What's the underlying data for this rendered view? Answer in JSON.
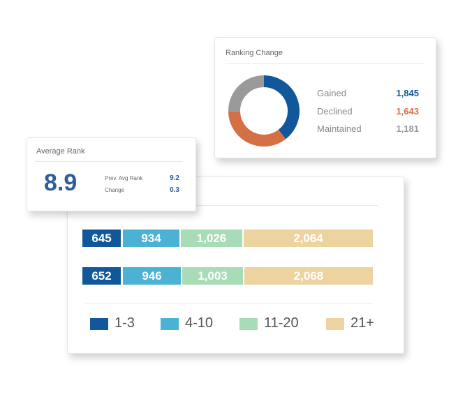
{
  "colors": {
    "dark_blue": "#11589b",
    "light_blue": "#4cb2d3",
    "light_green": "#a7dcb7",
    "tan": "#ecd3a0",
    "orange": "#d56f44",
    "gray": "#9a9a9a"
  },
  "ranking_change": {
    "title": "Ranking Change",
    "items": [
      {
        "label": "Gained",
        "value": "1,845",
        "amount": 1845,
        "color": "#11589b"
      },
      {
        "label": "Declined",
        "value": "1,643",
        "amount": 1643,
        "color": "#d56f44"
      },
      {
        "label": "Maintained",
        "value": "1,181",
        "amount": 1181,
        "color": "#9a9a9a"
      }
    ]
  },
  "average_rank": {
    "title": "Average Rank",
    "value": "8.9",
    "prev_label": "Prev. Avg Rank",
    "prev_value": "9.2",
    "change_label": "Change",
    "change_value": "0.3"
  },
  "distribution": {
    "rows": [
      {
        "segments": [
          {
            "label": "645",
            "value": 645
          },
          {
            "label": "934",
            "value": 934
          },
          {
            "label": "1,026",
            "value": 1026
          },
          {
            "label": "2,064",
            "value": 2064
          }
        ]
      },
      {
        "segments": [
          {
            "label": "652",
            "value": 652
          },
          {
            "label": "946",
            "value": 946
          },
          {
            "label": "1,003",
            "value": 1003
          },
          {
            "label": "2,068",
            "value": 2068
          }
        ]
      }
    ],
    "legend": [
      {
        "label": "1-3",
        "color": "#11589b"
      },
      {
        "label": "4-10",
        "color": "#4cb2d3"
      },
      {
        "label": "11-20",
        "color": "#a7dcb7"
      },
      {
        "label": "21+",
        "color": "#ecd3a0"
      }
    ]
  }
}
